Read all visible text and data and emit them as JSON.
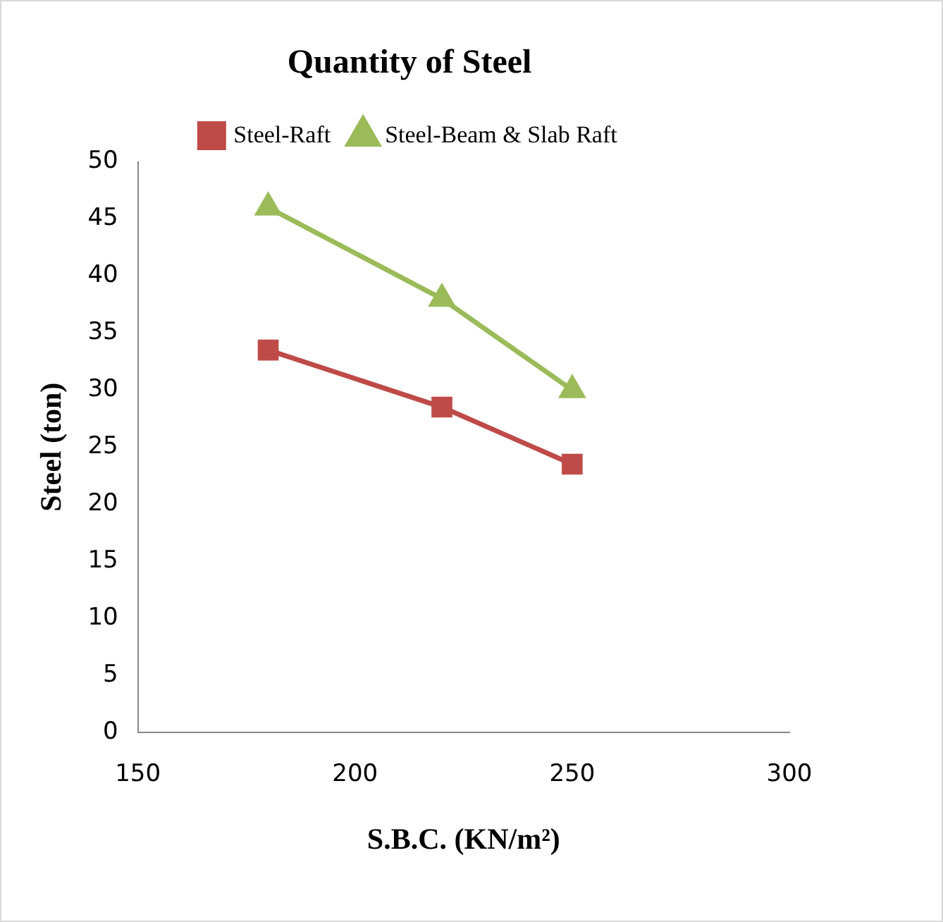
{
  "chart_data": {
    "type": "line",
    "title": "Quantity of Steel",
    "xlabel": "S.B.C. (KN/m²)",
    "ylabel": "Steel (ton)",
    "x": [
      180,
      220,
      250
    ],
    "series": [
      {
        "name": "Steel-Raft",
        "color": "#be4b48",
        "marker": "square",
        "values": [
          33.5,
          28.5,
          23.5
        ]
      },
      {
        "name": "Steel-Beam & Slab Raft",
        "color": "#9bbb59",
        "marker": "triangle",
        "values": [
          46,
          38,
          30
        ]
      }
    ],
    "xlim": [
      150,
      300
    ],
    "xticks": [
      150,
      200,
      250,
      300
    ],
    "ylim": [
      0,
      50
    ],
    "yticks": [
      0,
      5,
      10,
      15,
      20,
      25,
      30,
      35,
      40,
      45,
      50
    ],
    "grid": false,
    "legend": "top",
    "line_style": "solid"
  }
}
